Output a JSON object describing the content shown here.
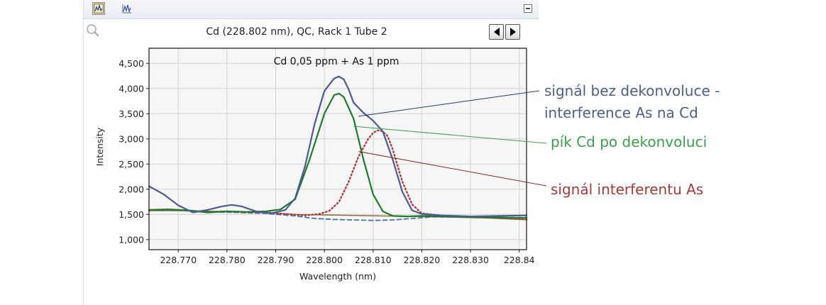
{
  "toolbar": {
    "icons": [
      "chart-line-icon",
      "chart-peaks-icon",
      "collapse-icon"
    ]
  },
  "header": {
    "title": "Cd (228.802 nm), QC, Rack 1 Tube 2",
    "nav_icons": [
      "arrow-left-icon",
      "arrow-right-icon"
    ]
  },
  "annotations": {
    "blue_line1": "signál bez dekonvoluce -",
    "blue_line2": "interference As na Cd",
    "green": "pík Cd po dekonvoluci",
    "red": "signál interferentu As"
  },
  "colors": {
    "blue": "#4a5c94",
    "green": "#1f7a2a",
    "red": "#b03a3a",
    "blue_dashed": "#4a73a6",
    "brown": "#8b6a3a",
    "blue_text": "#4c5e8c",
    "green_text": "#3e9e4e",
    "red_text": "#a33b3b"
  },
  "chart_data": {
    "type": "line",
    "title": "Cd 0,05 ppm + As 1 ppm",
    "xlabel": "Wavelength (nm)",
    "ylabel": "Intensity",
    "xlim": [
      228.764,
      228.8415
    ],
    "ylim": [
      800,
      4800
    ],
    "grid": true,
    "xticks": [
      228.77,
      228.78,
      228.79,
      228.8,
      228.81,
      228.82,
      228.83,
      228.84
    ],
    "xtick_labels": [
      "228.770",
      "228.780",
      "228.790",
      "228.800",
      "228.810",
      "228.820",
      "228.830",
      "228.84"
    ],
    "yticks": [
      1000,
      1500,
      2000,
      2500,
      3000,
      3500,
      4000,
      4500
    ],
    "ytick_labels": [
      "1,000",
      "1,500",
      "2,000",
      "2,500",
      "3,000",
      "3,500",
      "4,000",
      "4,500"
    ],
    "series": [
      {
        "key": "raw",
        "style": "solid",
        "color": "#4a5c94",
        "x": [
          228.764,
          228.767,
          228.77,
          228.773,
          228.776,
          228.779,
          228.781,
          228.783,
          228.786,
          228.789,
          228.792,
          228.794,
          228.796,
          228.798,
          228.8,
          228.802,
          228.803,
          228.804,
          228.805,
          228.806,
          228.808,
          228.81,
          228.812,
          228.814,
          228.816,
          228.818,
          228.82,
          228.824,
          228.83,
          228.836,
          228.8415
        ],
        "y": [
          2060,
          1900,
          1680,
          1540,
          1590,
          1660,
          1690,
          1660,
          1560,
          1520,
          1590,
          1820,
          2450,
          3300,
          3950,
          4200,
          4240,
          4180,
          3980,
          3720,
          3520,
          3360,
          3150,
          2600,
          1950,
          1580,
          1510,
          1480,
          1460,
          1470,
          1480
        ]
      },
      {
        "key": "cd",
        "style": "solid",
        "color": "#1f7a2a",
        "x": [
          228.764,
          228.768,
          228.772,
          228.776,
          228.78,
          228.784,
          228.788,
          228.791,
          228.794,
          228.797,
          228.8,
          228.802,
          228.803,
          228.804,
          228.806,
          228.808,
          228.81,
          228.812,
          228.814,
          228.817,
          228.82,
          228.825,
          228.83,
          228.836,
          228.8415
        ],
        "y": [
          1590,
          1600,
          1580,
          1540,
          1560,
          1550,
          1560,
          1600,
          1800,
          2600,
          3500,
          3870,
          3900,
          3830,
          3400,
          2600,
          1900,
          1560,
          1470,
          1460,
          1470,
          1460,
          1450,
          1440,
          1430
        ]
      },
      {
        "key": "as",
        "style": "dotted",
        "color": "#b03a3a",
        "x": [
          228.764,
          228.768,
          228.772,
          228.776,
          228.78,
          228.784,
          228.788,
          228.792,
          228.796,
          228.799,
          228.801,
          228.803,
          228.805,
          228.807,
          228.809,
          228.81,
          228.811,
          228.812,
          228.813,
          228.814,
          228.816,
          228.818,
          228.82,
          228.825,
          228.83,
          228.836,
          228.8415
        ],
        "y": [
          1580,
          1600,
          1580,
          1550,
          1560,
          1550,
          1540,
          1510,
          1480,
          1510,
          1570,
          1750,
          2150,
          2650,
          3000,
          3120,
          3170,
          3150,
          3050,
          2800,
          2150,
          1700,
          1520,
          1470,
          1450,
          1430,
          1400
        ]
      },
      {
        "key": "background",
        "style": "dashed",
        "color": "#4a73a6",
        "x": [
          228.764,
          228.77,
          228.776,
          228.782,
          228.788,
          228.794,
          228.798,
          228.802,
          228.806,
          228.81,
          228.814,
          228.818,
          228.822,
          228.828,
          228.834,
          228.8415
        ],
        "y": [
          1590,
          1580,
          1550,
          1540,
          1520,
          1470,
          1420,
          1400,
          1390,
          1380,
          1390,
          1420,
          1450,
          1450,
          1440,
          1440
        ]
      },
      {
        "key": "fit",
        "style": "solid",
        "color": "#8b6a3a",
        "x": [
          228.764,
          228.772,
          228.78,
          228.788,
          228.794,
          228.8,
          228.806,
          228.812,
          228.818,
          228.826,
          228.834,
          228.8415
        ],
        "y": [
          1575,
          1575,
          1555,
          1535,
          1500,
          1490,
          1480,
          1470,
          1460,
          1445,
          1425,
          1395
        ]
      }
    ],
    "pointers": [
      {
        "key": "raw",
        "from": [
          228.807,
          3450
        ],
        "color": "#2a3a6a"
      },
      {
        "key": "cd",
        "from": [
          228.806,
          3250
        ],
        "color": "#3e9e4e"
      },
      {
        "key": "as",
        "from": [
          228.807,
          2750
        ],
        "color": "#8a2a2a"
      }
    ]
  }
}
